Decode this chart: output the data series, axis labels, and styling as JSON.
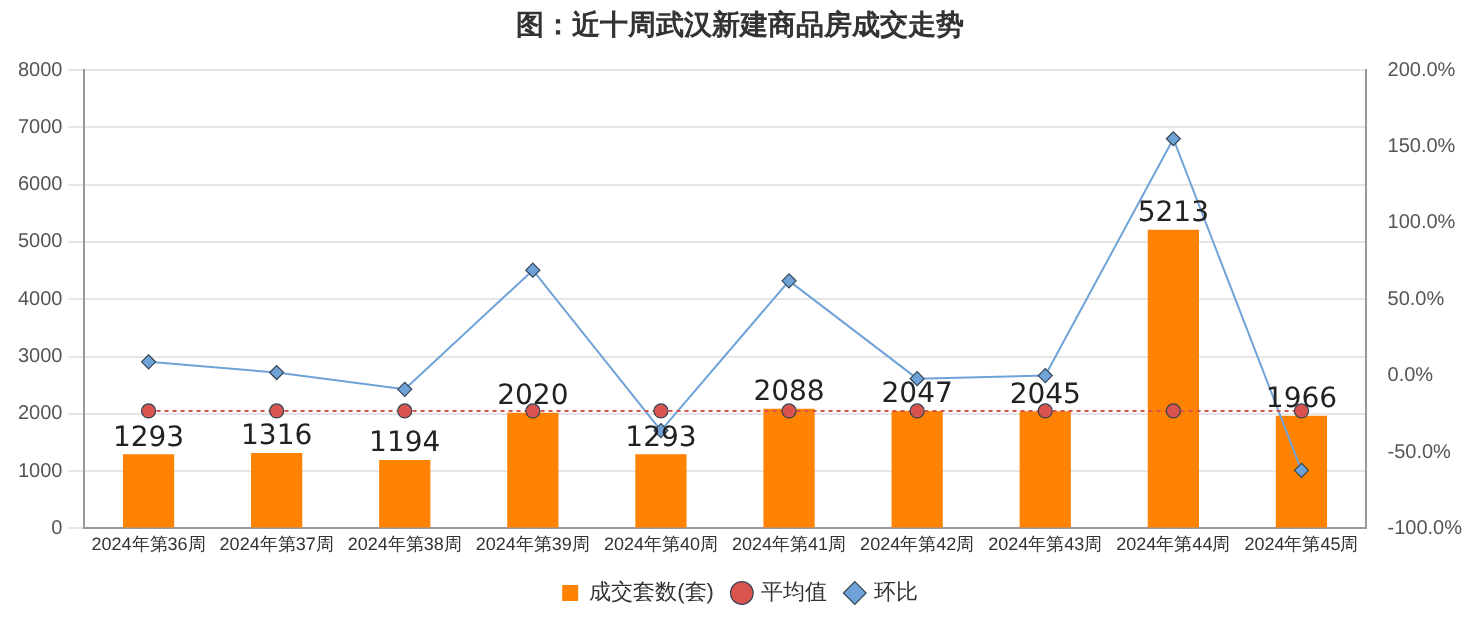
{
  "chart_data": {
    "type": "bar",
    "title": "图：近十周武汉新建商品房成交走势",
    "categories": [
      "2024年第36周",
      "2024年第37周",
      "2024年第38周",
      "2024年第39周",
      "2024年第40周",
      "2024年第41周",
      "2024年第42周",
      "2024年第43周",
      "2024年第44周",
      "2024年第45周"
    ],
    "series": [
      {
        "name": "成交套数(套)",
        "color": "#ff8200",
        "values": [
          1293,
          1316,
          1194,
          2020,
          1293,
          2088,
          2047,
          2045,
          5213,
          1966
        ],
        "value_labels": [
          "1293",
          "1316",
          "1194",
          "2020",
          "1293",
          "2088",
          "2047",
          "2045",
          "5213",
          "1966"
        ]
      },
      {
        "name": "平均值",
        "type": "line",
        "color": "#d9534f",
        "marker": "circle",
        "line_style": "dotted",
        "values": [
          2050,
          2050,
          2050,
          2050,
          2050,
          2050,
          2050,
          2050,
          2050,
          2050
        ]
      },
      {
        "name": "环比",
        "type": "line",
        "color": "#6fa3d8",
        "marker": "diamond",
        "line_style": "solid",
        "axis": "y2",
        "values": [
          9,
          2,
          -9,
          69,
          -36,
          62,
          -2,
          0,
          155,
          -62
        ]
      }
    ],
    "ylim": [
      0,
      8000
    ],
    "yticks": [
      0,
      1000,
      2000,
      3000,
      4000,
      5000,
      6000,
      7000,
      8000
    ],
    "y2lim": [
      -100,
      200
    ],
    "y2ticks": [
      {
        "value": -100,
        "label": "-100.0%"
      },
      {
        "value": -50,
        "label": "-50.0%"
      },
      {
        "value": 0,
        "label": "0.0%"
      },
      {
        "value": 50,
        "label": "50.0%"
      },
      {
        "value": 100,
        "label": "100.0%"
      },
      {
        "value": 150,
        "label": "150.0%"
      },
      {
        "value": 200,
        "label": "200.0%"
      }
    ],
    "grid": "y",
    "legend": "bottom"
  }
}
